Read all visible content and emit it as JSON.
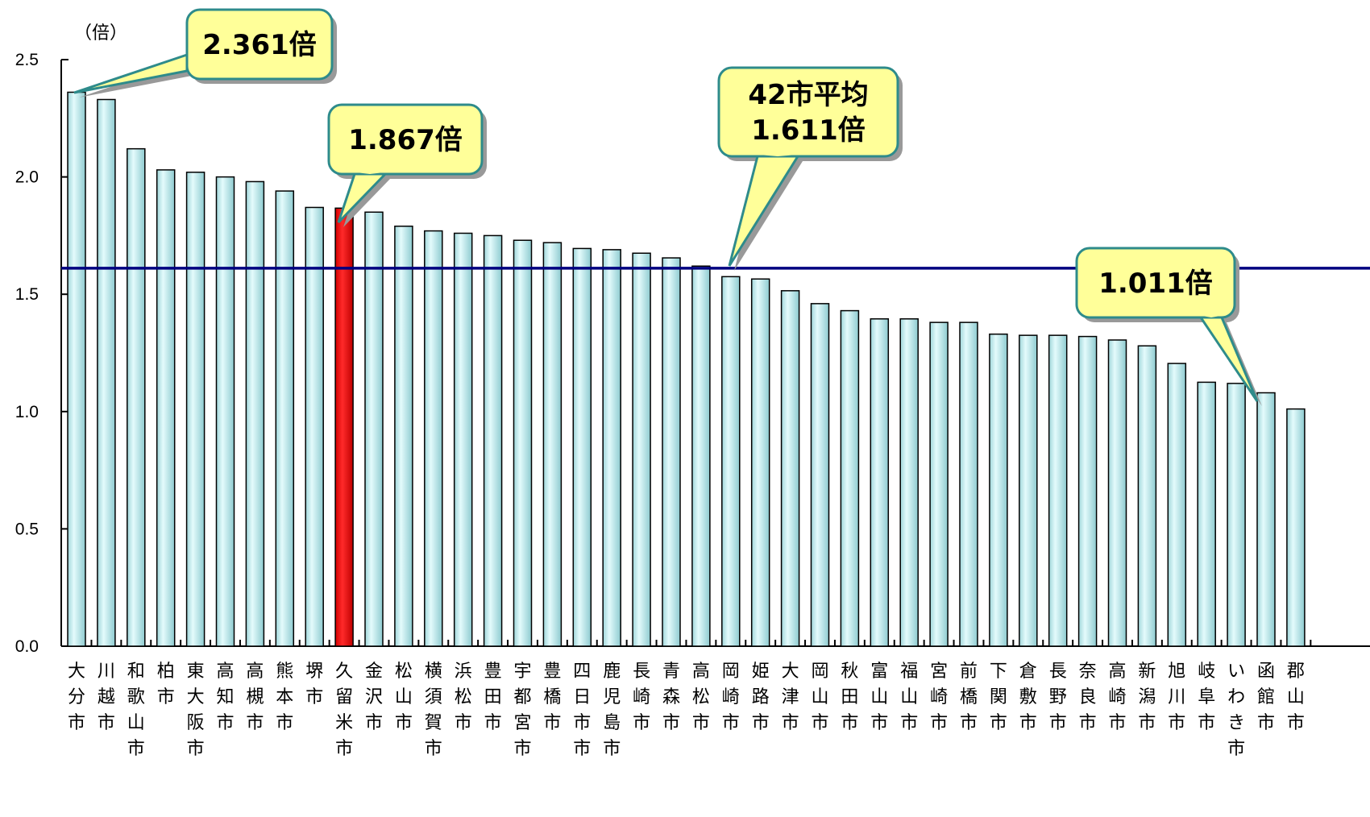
{
  "chart_data": {
    "type": "bar",
    "unit_label": "（倍）",
    "ylim": [
      0,
      2.5
    ],
    "yticks": [
      "0.0",
      "0.5",
      "1.0",
      "1.5",
      "2.0",
      "2.5"
    ],
    "categories": [
      "大分市",
      "川越市",
      "和歌山市",
      "柏市",
      "東大阪市",
      "高知市",
      "高槻市",
      "熊本市",
      "堺市",
      "久留米市",
      "金沢市",
      "松山市",
      "横須賀市",
      "浜松市",
      "豊田市",
      "宇都宮市",
      "豊橋市",
      "四日市市",
      "鹿児島市",
      "長崎市",
      "青森市",
      "高松市",
      "岡崎市",
      "姫路市",
      "大津市",
      "岡山市",
      "秋田市",
      "富山市",
      "福山市",
      "宮崎市",
      "前橋市",
      "下関市",
      "倉敷市",
      "長野市",
      "奈良市",
      "高崎市",
      "新潟市",
      "旭川市",
      "岐阜市",
      "いわき市",
      "函館市",
      "郡山市"
    ],
    "values": [
      2.361,
      2.33,
      2.12,
      2.03,
      2.02,
      2.0,
      1.98,
      1.94,
      1.87,
      1.867,
      1.85,
      1.79,
      1.77,
      1.76,
      1.75,
      1.73,
      1.72,
      1.695,
      1.69,
      1.675,
      1.655,
      1.62,
      1.575,
      1.565,
      1.515,
      1.46,
      1.43,
      1.395,
      1.395,
      1.38,
      1.38,
      1.33,
      1.325,
      1.325,
      1.32,
      1.305,
      1.28,
      1.205,
      1.125,
      1.12,
      1.08,
      1.011
    ],
    "highlight": "久留米市",
    "average": 1.611,
    "colors": {
      "bar": "#c7f0f2",
      "highlight_bar": "#ff0000",
      "average_line": "#000080",
      "callout_fill": "#ffff99",
      "callout_border": "#2e8b8b"
    },
    "annotations": [
      {
        "id": "max",
        "lines": [
          "2.361倍"
        ]
      },
      {
        "id": "kurume",
        "lines": [
          "1.867倍"
        ]
      },
      {
        "id": "avg",
        "lines": [
          "42市平均",
          "1.611倍"
        ]
      },
      {
        "id": "min",
        "lines": [
          "1.011倍"
        ]
      }
    ]
  }
}
